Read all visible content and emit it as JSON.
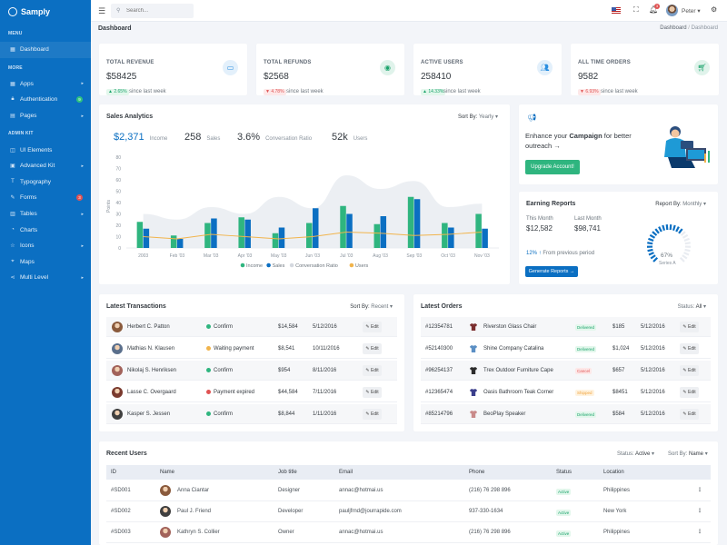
{
  "brand": {
    "name": "Samply"
  },
  "sidebar": {
    "sections": [
      {
        "title": "MENU",
        "items": [
          {
            "label": "Dashboard",
            "icon": "grid-icon"
          }
        ]
      },
      {
        "title": "MORE",
        "items": [
          {
            "label": "Apps",
            "icon": "grid-icon",
            "arrow": true
          },
          {
            "label": "Authentication",
            "icon": "lock-icon",
            "badge": "9",
            "badge_color": "#2ec27e"
          },
          {
            "label": "Pages",
            "icon": "file-icon",
            "arrow": true
          }
        ]
      },
      {
        "title": "ADMIN KIT",
        "items": [
          {
            "label": "UI Elements",
            "icon": "layers-icon"
          },
          {
            "label": "Advanced Kit",
            "icon": "box-icon",
            "arrow": true
          },
          {
            "label": "Typography",
            "icon": "text-icon"
          },
          {
            "label": "Forms",
            "icon": "edit-icon",
            "badge": "3",
            "badge_color": "#e05353"
          },
          {
            "label": "Tables",
            "icon": "table-icon",
            "arrow": true
          },
          {
            "label": "Charts",
            "icon": "chart-icon"
          },
          {
            "label": "Icons",
            "icon": "star-icon",
            "arrow": true
          },
          {
            "label": "Maps",
            "icon": "pin-icon"
          },
          {
            "label": "Multi Level",
            "icon": "share-icon",
            "arrow": true
          }
        ]
      }
    ]
  },
  "topbar": {
    "search_placeholder": "Search...",
    "notification_count": "3",
    "user_name": "Peter"
  },
  "page": {
    "title": "Dashboard",
    "breadcrumb": [
      "Dashboard",
      "Dashboard"
    ]
  },
  "stats": [
    {
      "label": "TOTAL REVENUE",
      "value": "$58425",
      "change": "2.65%",
      "trend": "up",
      "since": "since last week",
      "icon": "money-icon",
      "color": "#2b8fe0"
    },
    {
      "label": "TOTAL REFUNDS",
      "value": "$2568",
      "change": "4.78%",
      "trend": "down",
      "since": "since last week",
      "icon": "refresh-icon",
      "color": "#1aa36b"
    },
    {
      "label": "ACTIVE USERS",
      "value": "258410",
      "change": "14.33%",
      "trend": "up",
      "since": "since last week",
      "icon": "users-icon",
      "color": "#2b8fe0"
    },
    {
      "label": "ALL TIME ORDERS",
      "value": "9582",
      "change": "6.93%",
      "trend": "down",
      "since": "since last week",
      "icon": "cart-icon",
      "color": "#1aa36b"
    }
  ],
  "sales_analytics": {
    "title": "Sales Analytics",
    "sort_label": "Sort By:",
    "sort_value": "Yearly",
    "kpis": [
      {
        "value": "$2,371",
        "label": "Income"
      },
      {
        "value": "258",
        "label": "Sales"
      },
      {
        "value": "3.6%",
        "label": "Conversation Ratio"
      },
      {
        "value": "52k",
        "label": "Users"
      }
    ]
  },
  "chart_data": {
    "type": "bar",
    "ylabel": "Points",
    "ylim": [
      0,
      80
    ],
    "yticks": [
      0,
      10,
      20,
      30,
      40,
      50,
      60,
      70,
      80
    ],
    "categories": [
      "2003",
      "Feb '03",
      "Mar '03",
      "Apr '03",
      "May '03",
      "Jun '03",
      "Jul '03",
      "Aug '03",
      "Sep '03",
      "Oct '03",
      "Nov '03"
    ],
    "series": [
      {
        "name": "Income",
        "type": "bar",
        "color": "#2fb57f",
        "values": [
          23,
          11,
          22,
          27,
          13,
          22,
          37,
          21,
          45,
          22,
          30
        ]
      },
      {
        "name": "Sales",
        "type": "bar",
        "color": "#0b6fc2",
        "values": [
          17,
          8,
          26,
          25,
          18,
          35,
          30,
          28,
          43,
          18,
          17
        ]
      },
      {
        "name": "Conversation Ratio",
        "type": "area",
        "color": "#e9ecf1",
        "values": [
          30,
          25,
          36,
          30,
          45,
          35,
          64,
          52,
          59,
          36,
          39
        ]
      },
      {
        "name": "Users",
        "type": "line",
        "color": "#f1b44c",
        "values": [
          10,
          8,
          12,
          10,
          8,
          10,
          14,
          13,
          11,
          12,
          14
        ]
      }
    ],
    "legend_position": "bottom"
  },
  "campaign": {
    "text_before": "Enhance your",
    "text_bold": "Campaign",
    "text_after": "for better outreach",
    "button": "Upgrade Account!"
  },
  "earning": {
    "title": "Earning Reports",
    "report_label": "Report By:",
    "report_value": "Monthly",
    "this_month_label": "This Month",
    "this_month_value": "$12,582",
    "last_month_label": "Last Month",
    "last_month_value": "$98,741",
    "growth": "12%",
    "growth_text": "From previous period",
    "button": "Generate Reports",
    "gauge_value": "67%",
    "gauge_fraction": 0.67,
    "gauge_label": "Series A"
  },
  "transactions": {
    "title": "Latest Transactions",
    "sort_label": "Sort By:",
    "sort_value": "Recent",
    "edit_label": "Edit",
    "rows": [
      {
        "name": "Herbert C. Patton",
        "status": "Confirm",
        "status_color": "#2fb57f",
        "amount": "$14,584",
        "date": "5/12/2016",
        "avatar_color": "#8a5a3c"
      },
      {
        "name": "Mathias N. Klausen",
        "status": "Waiting payment",
        "status_color": "#f1b44c",
        "amount": "$8,541",
        "date": "10/11/2016",
        "avatar_color": "#5a6f8c"
      },
      {
        "name": "Nikolaj S. Henriksen",
        "status": "Confirm",
        "status_color": "#2fb57f",
        "amount": "$954",
        "date": "8/11/2016",
        "avatar_color": "#a2625a"
      },
      {
        "name": "Lasse C. Overgaard",
        "status": "Payment expired",
        "status_color": "#e05353",
        "amount": "$44,584",
        "date": "7/11/2016",
        "avatar_color": "#7a3a2e"
      },
      {
        "name": "Kasper S. Jessen",
        "status": "Confirm",
        "status_color": "#2fb57f",
        "amount": "$8,844",
        "date": "1/11/2016",
        "avatar_color": "#3f3f3f"
      }
    ]
  },
  "orders": {
    "title": "Latest Orders",
    "status_label": "Status:",
    "status_value": "All",
    "edit_label": "Edit",
    "rows": [
      {
        "id": "#12354781",
        "product": "Riverston Glass Chair",
        "status": "Delivered",
        "status_bg": "#e3f7ec",
        "status_fg": "#1aa36b",
        "price": "$185",
        "date": "5/12/2016",
        "icon_color": "#7a2e2e"
      },
      {
        "id": "#52140300",
        "product": "Shine Company Catalina",
        "status": "Delivered",
        "status_bg": "#e3f7ec",
        "status_fg": "#1aa36b",
        "price": "$1,024",
        "date": "5/12/2016",
        "icon_color": "#5b8fc4"
      },
      {
        "id": "#96254137",
        "product": "Trex Outdoor Furniture Cape",
        "status": "Cancel",
        "status_bg": "#fde8e8",
        "status_fg": "#e05353",
        "price": "$657",
        "date": "5/12/2016",
        "icon_color": "#2c2c2c"
      },
      {
        "id": "#12365474",
        "product": "Oasis Bathroom Teak Corner",
        "status": "Shipped",
        "status_bg": "#fff3e0",
        "status_fg": "#f1a33c",
        "price": "$8451",
        "date": "5/12/2016",
        "icon_color": "#3b3f8c"
      },
      {
        "id": "#85214796",
        "product": "BeoPlay Speaker",
        "status": "Delivered",
        "status_bg": "#e3f7ec",
        "status_fg": "#1aa36b",
        "price": "$584",
        "date": "5/12/2016",
        "icon_color": "#c98a8a"
      }
    ]
  },
  "recent_users": {
    "title": "Recent Users",
    "status_label": "Status:",
    "status_value": "Active",
    "sort_label": "Sort By:",
    "sort_value": "Name",
    "columns": [
      "ID",
      "Name",
      "Job title",
      "Email",
      "Phone",
      "Status",
      "Location"
    ],
    "rows": [
      {
        "id": "#SD001",
        "name": "Anna Ciantar",
        "job": "Designer",
        "email": "annac@hotmai.us",
        "phone": "(216) 76 298 896",
        "status": "Active",
        "location": "Philippines",
        "avatar_color": "#8a5a3c"
      },
      {
        "id": "#SD002",
        "name": "Paul J. Friend",
        "job": "Developer",
        "email": "pauljfrnd@jourrapide.com",
        "phone": "937-330-1634",
        "status": "Active",
        "location": "New York",
        "avatar_color": "#3f3f3f"
      },
      {
        "id": "#SD003",
        "name": "Kathryn S. Collier",
        "job": "Owner",
        "email": "annac@hotmai.us",
        "phone": "(216) 76 298 896",
        "status": "Active",
        "location": "Philippines",
        "avatar_color": "#a2625a"
      }
    ]
  }
}
